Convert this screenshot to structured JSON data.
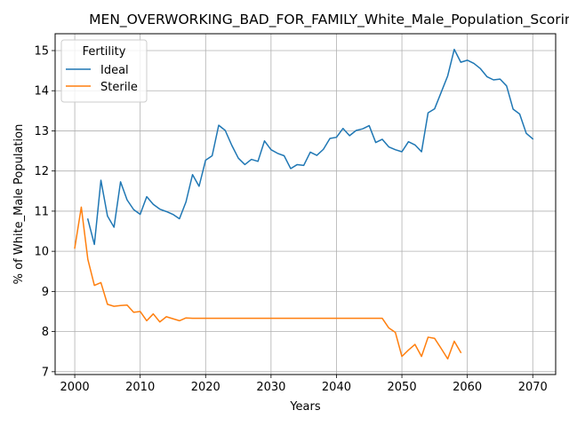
{
  "chart_data": {
    "type": "line",
    "title": "MEN_OVERWORKING_BAD_FOR_FAMILY_White_Male_Population_Scoring:",
    "xlabel": "Years",
    "ylabel": "% of White_Male Population",
    "xlim": [
      1997,
      2073.5
    ],
    "ylim": [
      6.93,
      15.42
    ],
    "xticks": [
      2000,
      2010,
      2020,
      2030,
      2040,
      2050,
      2060,
      2070
    ],
    "yticks": [
      7,
      8,
      9,
      10,
      11,
      12,
      13,
      14,
      15
    ],
    "grid": true,
    "legend": {
      "title": "Fertility",
      "position": "top-left"
    },
    "series": [
      {
        "name": "Ideal",
        "color": "#1f77b4",
        "x": [
          2002,
          2003,
          2004,
          2005,
          2006,
          2007,
          2008,
          2009,
          2010,
          2011,
          2012,
          2013,
          2014,
          2015,
          2016,
          2017,
          2018,
          2019,
          2020,
          2021,
          2022,
          2023,
          2024,
          2025,
          2026,
          2027,
          2028,
          2029,
          2030,
          2031,
          2032,
          2033,
          2034,
          2035,
          2036,
          2037,
          2038,
          2039,
          2040,
          2041,
          2042,
          2043,
          2044,
          2045,
          2046,
          2047,
          2048,
          2049,
          2050,
          2051,
          2052,
          2053,
          2054,
          2055,
          2056,
          2057,
          2058,
          2059,
          2060,
          2061,
          2062,
          2063,
          2064,
          2065,
          2066,
          2067,
          2068,
          2069,
          2070
        ],
        "y": [
          10.8,
          10.17,
          11.77,
          10.88,
          10.6,
          11.73,
          11.28,
          11.04,
          10.92,
          11.36,
          11.17,
          11.05,
          10.99,
          10.92,
          10.81,
          11.23,
          11.91,
          11.62,
          12.27,
          12.38,
          13.14,
          13.01,
          12.64,
          12.32,
          12.16,
          12.29,
          12.24,
          12.75,
          12.53,
          12.44,
          12.38,
          12.06,
          12.16,
          12.14,
          12.47,
          12.39,
          12.54,
          12.81,
          12.84,
          13.06,
          12.88,
          13.01,
          13.05,
          13.13,
          12.71,
          12.79,
          12.6,
          12.53,
          12.48,
          12.73,
          12.65,
          12.48,
          13.45,
          13.55,
          13.96,
          14.37,
          15.03,
          14.71,
          14.76,
          14.68,
          14.55,
          14.35,
          14.27,
          14.29,
          14.12,
          13.54,
          13.42,
          12.94,
          12.8
        ]
      },
      {
        "name": "Sterile",
        "color": "#ff7f0e",
        "x": [
          2000,
          2001,
          2002,
          2003,
          2004,
          2005,
          2006,
          2007,
          2008,
          2009,
          2010,
          2011,
          2012,
          2013,
          2014,
          2015,
          2016,
          2017,
          2018,
          2019,
          2020,
          2021,
          2022,
          2023,
          2024,
          2025,
          2026,
          2027,
          2028,
          2029,
          2030,
          2031,
          2032,
          2033,
          2034,
          2035,
          2036,
          2037,
          2038,
          2039,
          2040,
          2041,
          2042,
          2043,
          2044,
          2045,
          2046,
          2047,
          2048,
          2049,
          2050,
          2051,
          2052,
          2053,
          2054,
          2055,
          2056,
          2057,
          2058,
          2059
        ],
        "y": [
          10.08,
          11.1,
          9.8,
          9.15,
          9.22,
          8.68,
          8.63,
          8.65,
          8.66,
          8.48,
          8.5,
          8.27,
          8.44,
          8.24,
          8.37,
          8.32,
          8.27,
          8.34,
          8.33,
          8.33,
          8.33,
          8.33,
          8.33,
          8.33,
          8.33,
          8.33,
          8.33,
          8.33,
          8.33,
          8.33,
          8.33,
          8.33,
          8.33,
          8.33,
          8.33,
          8.33,
          8.33,
          8.33,
          8.33,
          8.33,
          8.33,
          8.33,
          8.33,
          8.33,
          8.33,
          8.33,
          8.33,
          8.33,
          8.09,
          7.98,
          7.38,
          7.54,
          7.68,
          7.38,
          7.86,
          7.83,
          7.58,
          7.32,
          7.76,
          7.48
        ]
      }
    ]
  }
}
